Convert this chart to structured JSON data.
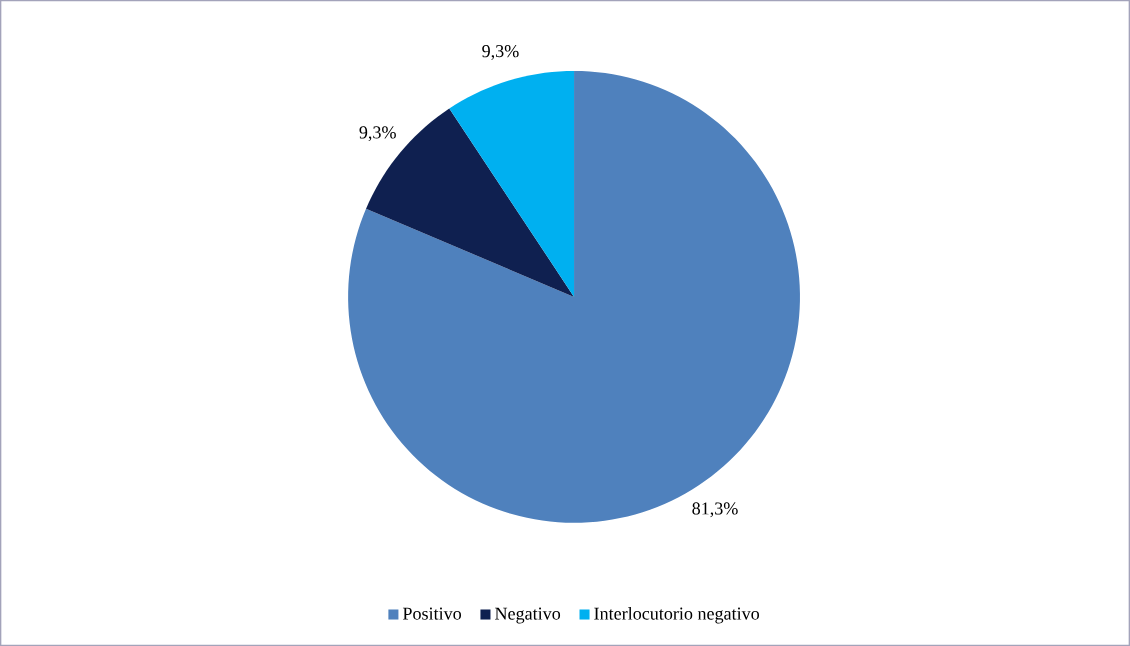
{
  "chart_data": {
    "type": "pie",
    "categories": [
      "Positivo",
      "Negativo",
      "Interlocutorio negativo"
    ],
    "values": [
      81.3,
      9.3,
      9.3
    ],
    "colors": [
      "#4f81bd",
      "#0f2050",
      "#00b0f0"
    ],
    "value_labels": [
      "81,3%",
      "9,3%",
      "9,3%"
    ],
    "legend": "bottom"
  }
}
